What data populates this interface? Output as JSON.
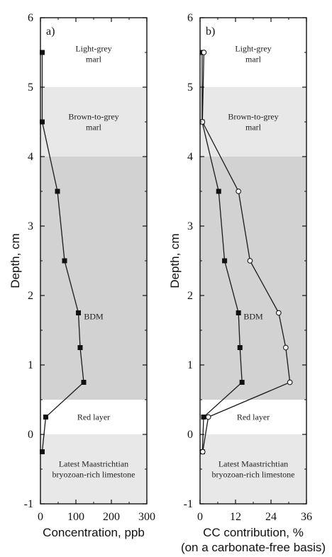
{
  "chart_data": [
    {
      "type": "line",
      "panel_label": "a)",
      "xlabel": "Concentration, ppb",
      "xlabel2": "",
      "ylabel": "Depth, cm",
      "xlim": [
        0,
        300
      ],
      "ylim": [
        -1,
        6
      ],
      "x_ticks": [
        "0",
        "100",
        "200",
        "300"
      ],
      "y_ticks": [
        "-1",
        "0",
        "1",
        "2",
        "3",
        "4",
        "5",
        "6"
      ],
      "layers": [
        {
          "label": [
            "Light-grey",
            "marl"
          ],
          "from": 5,
          "to": 6,
          "shade": "#ffffff"
        },
        {
          "label": [
            "Brown-to-grey",
            "marl"
          ],
          "from": 4,
          "to": 5,
          "shade": "#e8e8e8"
        },
        {
          "label": [
            "BDM"
          ],
          "from": 0.5,
          "to": 4,
          "shade": "#d2d2d2"
        },
        {
          "label": [
            "Red layer"
          ],
          "from": 0,
          "to": 0.5,
          "shade": "#ffffff"
        },
        {
          "label": [
            "Latest Maastrichtian",
            "bryozoan-rich limestone"
          ],
          "from": -1,
          "to": 0,
          "shade": "#e8e8e8"
        }
      ],
      "series": [
        {
          "marker": "square-filled",
          "points": [
            {
              "x": 5,
              "y": -0.25
            },
            {
              "x": 15,
              "y": 0.25
            },
            {
              "x": 122,
              "y": 0.75
            },
            {
              "x": 112,
              "y": 1.25
            },
            {
              "x": 107,
              "y": 1.75
            },
            {
              "x": 68,
              "y": 2.5
            },
            {
              "x": 48,
              "y": 3.5
            },
            {
              "x": 5,
              "y": 4.5
            },
            {
              "x": 5,
              "y": 5.5
            }
          ]
        }
      ]
    },
    {
      "type": "line",
      "panel_label": "b)",
      "xlabel": "CC contribution, %",
      "xlabel2": "(on a carbonate-free basis)",
      "ylabel": "Depth, cm",
      "xlim": [
        0,
        36
      ],
      "ylim": [
        -1,
        6
      ],
      "x_ticks": [
        "0",
        "12",
        "24",
        "36"
      ],
      "y_ticks": [
        "-1",
        "0",
        "1",
        "2",
        "3",
        "4",
        "5",
        "6"
      ],
      "layers": [
        {
          "label": [
            "Light-grey",
            "marl"
          ],
          "from": 5,
          "to": 6,
          "shade": "#ffffff"
        },
        {
          "label": [
            "Brown-to-grey",
            "marl"
          ],
          "from": 4,
          "to": 5,
          "shade": "#e8e8e8"
        },
        {
          "label": [
            "BDM"
          ],
          "from": 0.5,
          "to": 4,
          "shade": "#d2d2d2"
        },
        {
          "label": [
            "Red layer"
          ],
          "from": 0,
          "to": 0.5,
          "shade": "#ffffff"
        },
        {
          "label": [
            "Latest Maastrichtian",
            "bryozoan-rich limestone"
          ],
          "from": -1,
          "to": 0,
          "shade": "#e8e8e8"
        }
      ],
      "series": [
        {
          "marker": "square-filled",
          "points": [
            {
              "x": 0.8,
              "y": -0.25
            },
            {
              "x": 1.2,
              "y": 0.25
            },
            {
              "x": 14.2,
              "y": 0.75
            },
            {
              "x": 13.5,
              "y": 1.25
            },
            {
              "x": 13.0,
              "y": 1.75
            },
            {
              "x": 8.3,
              "y": 2.5
            },
            {
              "x": 6.3,
              "y": 3.5
            },
            {
              "x": 0.7,
              "y": 4.5
            },
            {
              "x": 0.7,
              "y": 5.5
            }
          ]
        },
        {
          "marker": "circle-open",
          "points": [
            {
              "x": 0.9,
              "y": -0.25
            },
            {
              "x": 2.8,
              "y": 0.25
            },
            {
              "x": 30.4,
              "y": 0.75
            },
            {
              "x": 29.0,
              "y": 1.25
            },
            {
              "x": 26.6,
              "y": 1.75
            },
            {
              "x": 16.9,
              "y": 2.5
            },
            {
              "x": 13.0,
              "y": 3.5
            },
            {
              "x": 0.8,
              "y": 4.5
            },
            {
              "x": 1.3,
              "y": 5.5
            }
          ]
        }
      ]
    }
  ]
}
